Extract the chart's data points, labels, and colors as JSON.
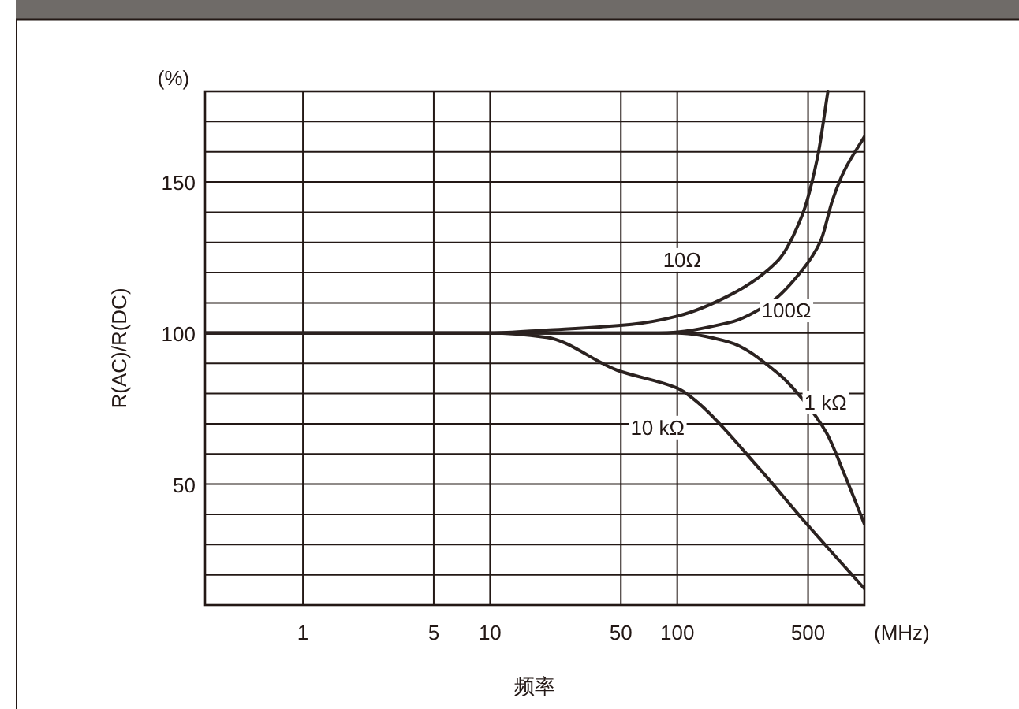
{
  "chart_data": {
    "type": "line",
    "xlabel": "频率",
    "ylabel": "R(AC)/R(DC)",
    "annotations": [
      "(%)",
      "(MHz)"
    ],
    "log": "x",
    "grid": true,
    "marker": "none",
    "line_style": "solid",
    "xlim": [
      0.3,
      1000
    ],
    "xticks": [
      1,
      5,
      10,
      50,
      100,
      500
    ],
    "ylim": [
      10,
      180
    ],
    "yticks": [
      {
        "value": 20,
        "label": null
      },
      {
        "value": 30,
        "label": null
      },
      {
        "value": 40,
        "label": null
      },
      50,
      {
        "value": 60,
        "label": null
      },
      {
        "value": 70,
        "label": null
      },
      {
        "value": 80,
        "label": null
      },
      {
        "value": 90,
        "label": null
      },
      100,
      {
        "value": 110,
        "label": null
      },
      {
        "value": 120,
        "label": null
      },
      {
        "value": 130,
        "label": null
      },
      {
        "value": 140,
        "label": null
      },
      150,
      {
        "value": 160,
        "label": null
      },
      {
        "value": 170,
        "label": null
      }
    ],
    "series": [
      {
        "name": "10Ω",
        "color": "#2b2220",
        "x": [
          0.3,
          10,
          20,
          57,
          100,
          190,
          345,
          465,
          561,
          638
        ],
        "values": [
          100,
          100,
          101,
          102.9,
          105.6,
          112.5,
          124,
          139,
          158,
          180
        ]
      },
      {
        "name": "100Ω",
        "color": "#2b2220",
        "x": [
          0.3,
          80,
          190,
          321,
          465,
          583,
          677,
          785,
          1000
        ],
        "values": [
          100,
          100,
          103.5,
          110.5,
          120.8,
          130.4,
          144.2,
          154,
          165
        ]
      },
      {
        "name": "1 kΩ",
        "color": "#2b2220",
        "x": [
          0.3,
          100,
          190,
          345,
          472,
          628,
          785,
          1000
        ],
        "values": [
          100,
          100,
          97,
          86.7,
          77.8,
          66.9,
          53,
          36.8
        ]
      },
      {
        "name": "10 kΩ",
        "color": "#2b2220",
        "x": [
          0.3,
          10,
          20,
          47.8,
          100,
          130,
          276,
          472,
          1000
        ],
        "values": [
          100,
          100,
          98.6,
          87.7,
          81.8,
          76.8,
          55,
          38.1,
          15.4
        ]
      }
    ]
  }
}
